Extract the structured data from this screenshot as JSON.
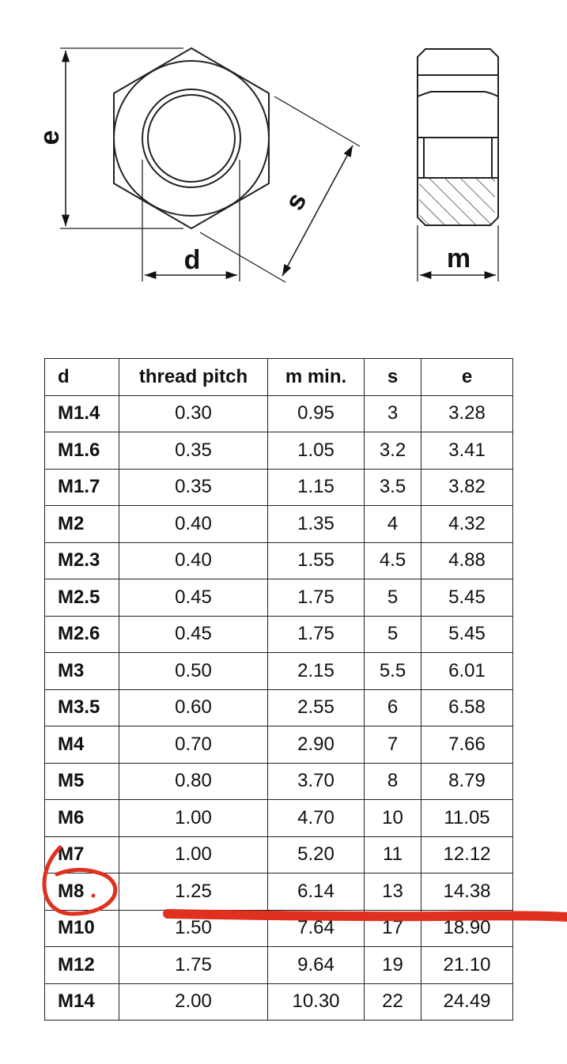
{
  "diagram": {
    "labels": {
      "e": "e",
      "d": "d",
      "s": "s",
      "m": "m"
    }
  },
  "table": {
    "headers": [
      "d",
      "thread pitch",
      "m min.",
      "s",
      "e"
    ],
    "rows": [
      [
        "M1.4",
        "0.30",
        "0.95",
        "3",
        "3.28"
      ],
      [
        "M1.6",
        "0.35",
        "1.05",
        "3.2",
        "3.41"
      ],
      [
        "M1.7",
        "0.35",
        "1.15",
        "3.5",
        "3.82"
      ],
      [
        "M2",
        "0.40",
        "1.35",
        "4",
        "4.32"
      ],
      [
        "M2.3",
        "0.40",
        "1.55",
        "4.5",
        "4.88"
      ],
      [
        "M2.5",
        "0.45",
        "1.75",
        "5",
        "5.45"
      ],
      [
        "M2.6",
        "0.45",
        "1.75",
        "5",
        "5.45"
      ],
      [
        "M3",
        "0.50",
        "2.15",
        "5.5",
        "6.01"
      ],
      [
        "M3.5",
        "0.60",
        "2.55",
        "6",
        "6.58"
      ],
      [
        "M4",
        "0.70",
        "2.90",
        "7",
        "7.66"
      ],
      [
        "M5",
        "0.80",
        "3.70",
        "8",
        "8.79"
      ],
      [
        "M6",
        "1.00",
        "4.70",
        "10",
        "11.05"
      ],
      [
        "M7",
        "1.00",
        "5.20",
        "11",
        "12.12"
      ],
      [
        "M8",
        "1.25",
        "6.14",
        "13",
        "14.38"
      ],
      [
        "M10",
        "1.50",
        "7.64",
        "17",
        "18.90"
      ],
      [
        "M12",
        "1.75",
        "9.64",
        "19",
        "21.10"
      ],
      [
        "M14",
        "2.00",
        "10.30",
        "22",
        "24.49"
      ]
    ]
  },
  "annotation": {
    "color": "#e0301e"
  }
}
